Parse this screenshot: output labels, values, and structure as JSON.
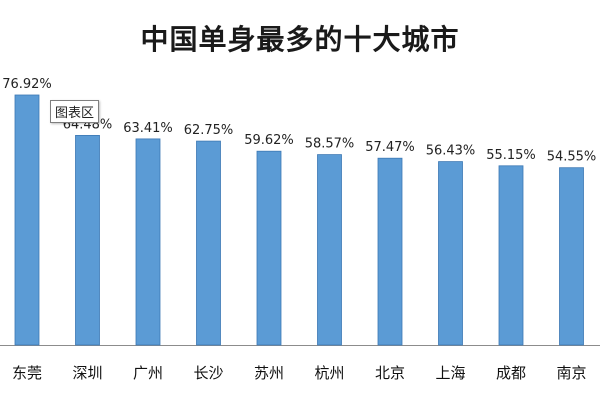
{
  "chart_data": {
    "type": "bar",
    "title": "中国单身最多的十大城市",
    "categories": [
      "东莞",
      "深圳",
      "广州",
      "长沙",
      "苏州",
      "杭州",
      "北京",
      "上海",
      "成都",
      "南京"
    ],
    "values": [
      76.92,
      64.48,
      63.41,
      62.75,
      59.62,
      58.57,
      57.47,
      56.43,
      55.15,
      54.55
    ],
    "value_labels": [
      "76.92%",
      "64.48%",
      "63.41%",
      "62.75%",
      "59.62%",
      "58.57%",
      "57.47%",
      "56.43%",
      "55.15%",
      "54.55%"
    ],
    "xlabel": "",
    "ylabel": "",
    "ylim": [
      0,
      80
    ],
    "grid": false,
    "bar_color": "#5b9bd5",
    "bar_edge_color": "#3c78b4"
  },
  "tooltip": {
    "label": "图表区"
  }
}
